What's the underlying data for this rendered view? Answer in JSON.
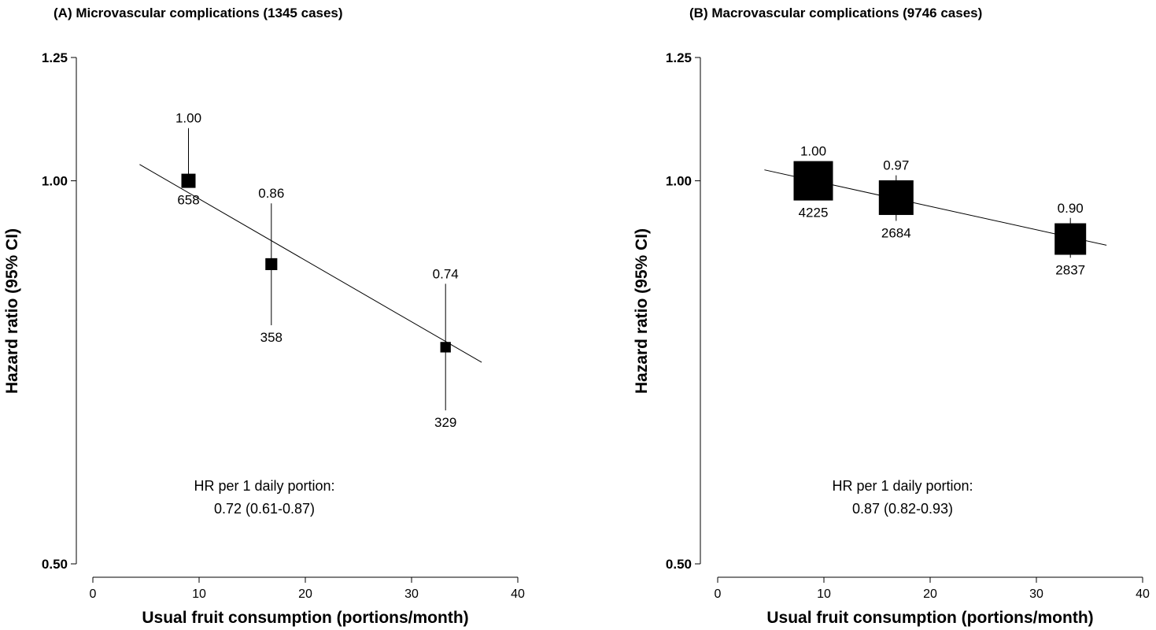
{
  "chart_data": [
    {
      "type": "scatter",
      "title": "(A) Microvascular complications (1345 cases)",
      "xlabel": "Usual fruit consumption (portions/month)",
      "ylabel": "Hazard ratio (95% CI)",
      "xlim": [
        0,
        40
      ],
      "ylim": [
        0.5,
        1.25
      ],
      "y_scale": "log",
      "x_ticks": [
        "0",
        "10",
        "20",
        "30",
        "40"
      ],
      "y_ticks": [
        "0.50",
        "1.00",
        "1.25"
      ],
      "points": [
        {
          "x": 9,
          "hr": 1.0,
          "lower": 1.0,
          "upper": 1.1,
          "hr_label": "1.00",
          "cases": "658",
          "size": 0.5
        },
        {
          "x": 16.8,
          "hr": 0.86,
          "lower": 0.77,
          "upper": 0.96,
          "hr_label": "0.86",
          "cases": "358",
          "size": 0.42
        },
        {
          "x": 33.2,
          "hr": 0.74,
          "lower": 0.66,
          "upper": 0.83,
          "hr_label": "0.74",
          "cases": "329",
          "size": 0.37
        }
      ],
      "trend": {
        "x_start": 4.4,
        "hr_start": 1.03,
        "x_end": 36.6,
        "hr_end": 0.72
      },
      "annotation": {
        "line1": "HR per 1 daily portion:",
        "line2": "0.72 (0.61-0.87)"
      }
    },
    {
      "type": "scatter",
      "title": "(B) Macrovascular complications (9746 cases)",
      "xlabel": "Usual fruit consumption (portions/month)",
      "ylabel": "Hazard ratio (95% CI)",
      "xlim": [
        0,
        40
      ],
      "ylim": [
        0.5,
        1.25
      ],
      "y_scale": "log",
      "x_ticks": [
        "0",
        "10",
        "20",
        "30",
        "40"
      ],
      "y_ticks": [
        "0.50",
        "1.00",
        "1.25"
      ],
      "points": [
        {
          "x": 9,
          "hr": 1.0,
          "lower": 1.0,
          "upper": 1.03,
          "hr_label": "1.00",
          "cases": "4225",
          "size": 1.0
        },
        {
          "x": 16.8,
          "hr": 0.97,
          "lower": 0.93,
          "upper": 1.01,
          "hr_label": "0.97",
          "cases": "2684",
          "size": 0.88
        },
        {
          "x": 33.2,
          "hr": 0.9,
          "lower": 0.87,
          "upper": 0.935,
          "hr_label": "0.90",
          "cases": "2837",
          "size": 0.8
        }
      ],
      "trend": {
        "x_start": 4.4,
        "hr_start": 1.02,
        "x_end": 36.6,
        "hr_end": 0.89
      },
      "annotation": {
        "line1": "HR per 1 daily portion:",
        "line2": "0.87 (0.82-0.93)"
      }
    }
  ]
}
